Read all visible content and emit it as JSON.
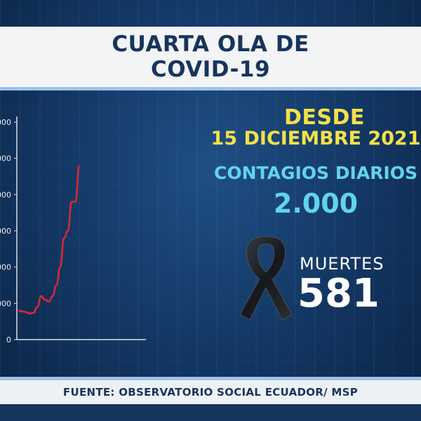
{
  "header": {
    "title_line1": "CUARTA OLA DE",
    "title_line2": "COVID-19"
  },
  "stats": {
    "desde_label": "DESDE",
    "fecha": "15 DICIEMBRE 2021",
    "contagios_label": "CONTAGIOS DIARIOS",
    "contagios_value": "2.000",
    "muertes_label": "MUERTES",
    "muertes_value": "581"
  },
  "footer": {
    "source": "FUENTE: OBSERVATORIO SOCIAL ECUADOR/ MSP"
  },
  "colors": {
    "title_band": "#f2f4f6",
    "title_text": "#17345c",
    "yellow": "#f3e14a",
    "cyan": "#63d3ec",
    "line_red": "#e0282e"
  },
  "icons": {
    "mourning": "black-ribbon-icon"
  },
  "chart_data": {
    "type": "line",
    "title": "",
    "xlabel": "",
    "ylabel": "",
    "ytick_labels": [
      "0",
      "000",
      "000",
      "000",
      "000",
      "000",
      "000"
    ],
    "ylim": [
      0,
      6
    ],
    "grid": false,
    "series": [
      {
        "values": [
          0.8,
          0.78,
          0.76,
          0.72,
          0.74,
          0.9,
          1.2,
          1.1,
          1.05,
          1.2,
          1.5,
          2.0,
          2.8,
          3.0,
          3.8,
          3.8,
          4.8
        ]
      }
    ]
  }
}
